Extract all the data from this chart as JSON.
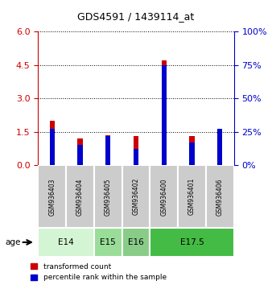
{
  "title": "GDS4591 / 1439114_at",
  "samples": [
    "GSM936403",
    "GSM936404",
    "GSM936405",
    "GSM936402",
    "GSM936400",
    "GSM936401",
    "GSM936406"
  ],
  "transformed_count": [
    2.0,
    1.2,
    1.35,
    1.3,
    4.7,
    1.3,
    1.6
  ],
  "percentile_rank": [
    27,
    15,
    22,
    12,
    75,
    17,
    27
  ],
  "age_groups": [
    {
      "label": "E14",
      "start": 0,
      "end": 2,
      "color": "#d4f5d4"
    },
    {
      "label": "E15",
      "start": 2,
      "end": 3,
      "color": "#99dd99"
    },
    {
      "label": "E16",
      "start": 3,
      "end": 4,
      "color": "#88cc88"
    },
    {
      "label": "E17.5",
      "start": 4,
      "end": 7,
      "color": "#44bb44"
    }
  ],
  "sample_box_color": "#cccccc",
  "sample_box_edge": "#ffffff",
  "left_axis_color": "#cc0000",
  "right_axis_color": "#0000cc",
  "bar_color_red": "#cc0000",
  "bar_color_blue": "#0000cc",
  "ylim_left": [
    0,
    6
  ],
  "ylim_right": [
    0,
    100
  ],
  "left_ticks": [
    0,
    1.5,
    3,
    4.5,
    6
  ],
  "right_ticks": [
    0,
    25,
    50,
    75,
    100
  ],
  "legend_red": "transformed count",
  "legend_blue": "percentile rank within the sample",
  "age_label": "age",
  "background_color": "#ffffff"
}
